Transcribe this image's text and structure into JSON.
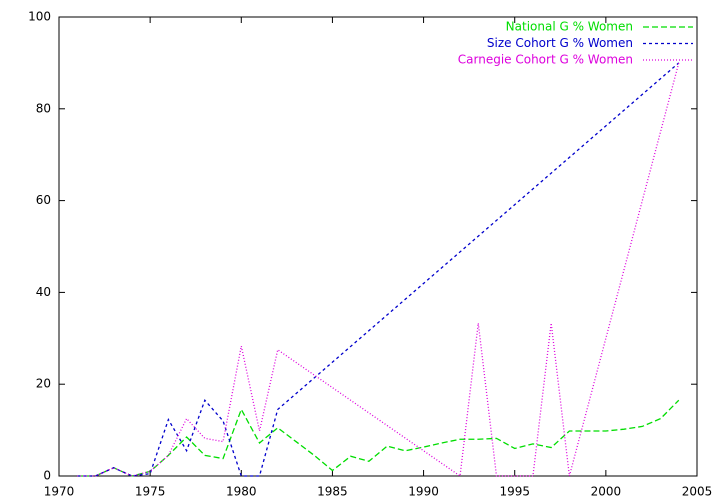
{
  "chart_data": {
    "type": "line",
    "xlim": [
      1970,
      2005
    ],
    "xticks": [
      1970,
      1975,
      1980,
      1985,
      1990,
      1995,
      2000,
      2005
    ],
    "ylim": [
      0,
      100
    ],
    "yticks": [
      0,
      20,
      40,
      60,
      80,
      100
    ],
    "grid": false,
    "legend": "top-right",
    "series": [
      {
        "name": "National G % Women",
        "color": "#00dd00",
        "dash": "6,3",
        "x": [
          1971,
          1972,
          1973,
          1974,
          1975,
          1976,
          1977,
          1978,
          1979,
          1980,
          1981,
          1982,
          1983,
          1984,
          1985,
          1986,
          1987,
          1988,
          1989,
          1990,
          1991,
          1992,
          1993,
          1994,
          1995,
          1996,
          1997,
          1998,
          1999,
          2000,
          2001,
          2002,
          2003,
          2004
        ],
        "values": [
          0,
          0,
          1.8,
          0,
          1,
          4.5,
          8.5,
          4.5,
          3.8,
          14.5,
          7.2,
          10.5,
          7.5,
          4.5,
          1.2,
          4.3,
          3.2,
          6.5,
          5.5,
          6.3,
          7.2,
          8,
          8,
          8.2,
          6,
          7,
          6.2,
          9.8,
          9.8,
          9.8,
          10.2,
          10.8,
          12.5,
          16.5
        ]
      },
      {
        "name": "Size Cohort G % Women",
        "color": "#0000cc",
        "dash": "3,3",
        "x": [
          1971,
          1972,
          1973,
          1974,
          1975,
          1976,
          1977,
          1978,
          1979,
          1980,
          1981,
          1982,
          2004
        ],
        "values": [
          0,
          0,
          1.8,
          0,
          0.5,
          12.3,
          5.5,
          16.5,
          12,
          0,
          0,
          14.5,
          90
        ]
      },
      {
        "name": "Carnegie Cohort G % Women",
        "color": "#dd00dd",
        "dash": "1,2",
        "x": [
          1971,
          1972,
          1973,
          1974,
          1975,
          1976,
          1977,
          1978,
          1979,
          1980,
          1981,
          1982,
          1992,
          1993,
          1994,
          1995,
          1996,
          1997,
          1998,
          2004
        ],
        "values": [
          0,
          0,
          1.8,
          0,
          1,
          4.5,
          12.5,
          8.2,
          7.5,
          28.3,
          9.8,
          27.5,
          0,
          33.3,
          0,
          0,
          0,
          33.3,
          0,
          90
        ]
      }
    ]
  }
}
